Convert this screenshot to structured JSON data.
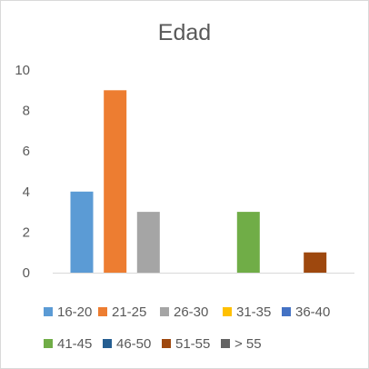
{
  "chart_data": {
    "type": "bar",
    "title": "Edad",
    "xlabel": "",
    "ylabel": "",
    "ylim": [
      0,
      10
    ],
    "yticks": [
      0,
      2,
      4,
      6,
      8,
      10
    ],
    "grid": false,
    "legend_position": "bottom",
    "series": [
      {
        "name": "16-20",
        "value": 4,
        "color": "#5b9bd5"
      },
      {
        "name": "21-25",
        "value": 9,
        "color": "#ed7d31"
      },
      {
        "name": "26-30",
        "value": 3,
        "color": "#a5a5a5"
      },
      {
        "name": "31-35",
        "value": 0,
        "color": "#ffc000"
      },
      {
        "name": "36-40",
        "value": 0,
        "color": "#4472c4"
      },
      {
        "name": "41-45",
        "value": 3,
        "color": "#70ad47"
      },
      {
        "name": "46-50",
        "value": 0,
        "color": "#255e91"
      },
      {
        "name": "51-55",
        "value": 1,
        "color": "#9e480e"
      },
      {
        "name": "> 55",
        "value": 0,
        "color": "#636363"
      }
    ]
  }
}
